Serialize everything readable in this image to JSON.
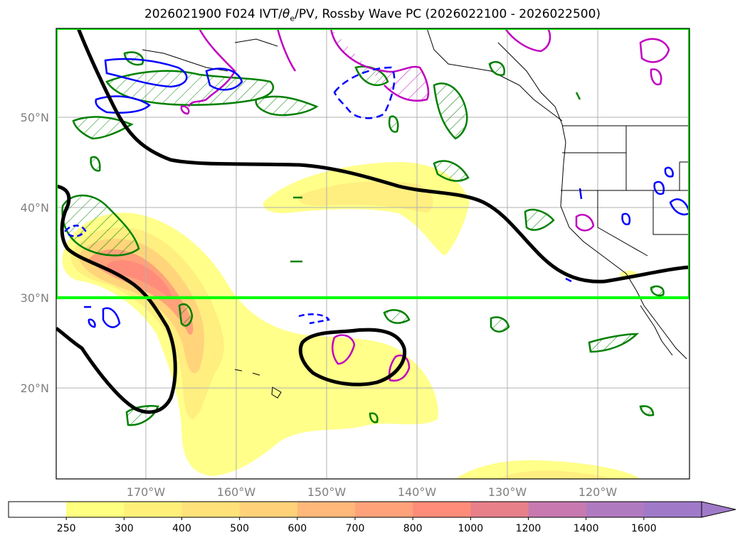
{
  "title": {
    "init": "2026021900 F024 IVT/",
    "theta": "θ",
    "theta_sub": "e",
    "rest": "/PV, Rossby Wave PC (2026022100 - 2026022500)"
  },
  "axes": {
    "lat_labels": [
      "50°N",
      "40°N",
      "30°N",
      "20°N"
    ],
    "lon_labels": [
      "170°W",
      "160°W",
      "150°W",
      "140°W",
      "130°W",
      "120°W"
    ]
  },
  "colorbar": {
    "ticks": [
      "250",
      "300",
      "400",
      "500",
      "600",
      "700",
      "800",
      "1000",
      "1200",
      "1400",
      "1600"
    ],
    "colors": [
      "#ffffff",
      "#ffff80",
      "#fff07a",
      "#ffe27a",
      "#ffd27a",
      "#ffb87a",
      "#ffa27a",
      "#ff8c7a",
      "#e8808a",
      "#c87ab0",
      "#b07ac0",
      "#a07ac8"
    ]
  },
  "colors": {
    "box": "#00ff00",
    "rossby_contour": "#000000",
    "pv_positive": "#008000",
    "theta_e_magenta": "#c000c0",
    "theta_e_blue": "#0000ff"
  },
  "icons": [
    "map-frame",
    "colorbar-extend-arrow"
  ]
}
